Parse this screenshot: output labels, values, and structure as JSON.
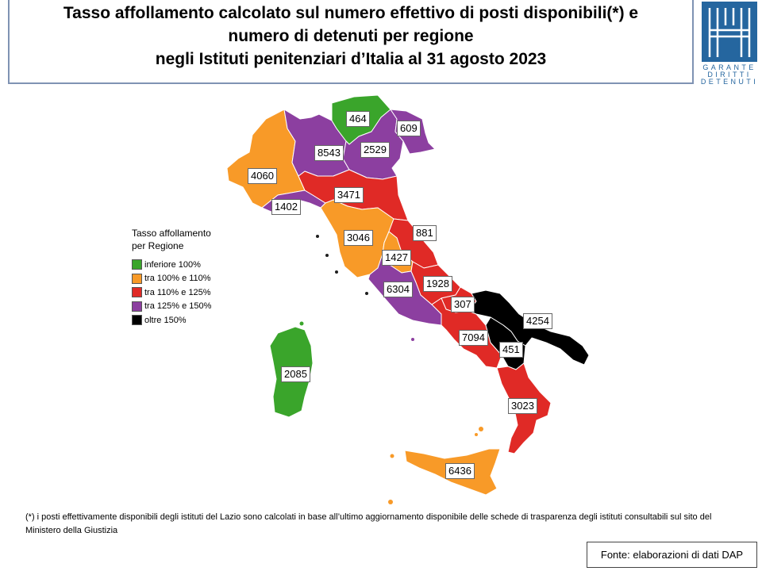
{
  "title": {
    "line1": "Tasso affollamento calcolato sul numero effettivo di posti disponibili(*) e",
    "line2": "numero di detenuti per regione",
    "line3": "negli Istituti penitenziari d’Italia al 31 agosto 2023"
  },
  "logo": {
    "line1": "GARANTE",
    "line2": "DIRITTI",
    "line3": "DETENUTI",
    "color": "#25669f"
  },
  "legend": {
    "title_line1": "Tasso affollamento",
    "title_line2": "per Regione",
    "items": [
      {
        "label": "inferiore 100%",
        "color": "#3aa52b"
      },
      {
        "label": "tra 100% e 110%",
        "color": "#f89a28"
      },
      {
        "label": "tra 110% e 125%",
        "color": "#e02a26"
      },
      {
        "label": "tra 125% e 150%",
        "color": "#8c3fa0"
      },
      {
        "label": "oltre 150%",
        "color": "#000000"
      }
    ]
  },
  "regions": [
    {
      "id": "trentino",
      "value": "464",
      "class": 0
    },
    {
      "id": "friuli",
      "value": "609",
      "class": 3
    },
    {
      "id": "lombardia",
      "value": "8543",
      "class": 3
    },
    {
      "id": "veneto",
      "value": "2529",
      "class": 3
    },
    {
      "id": "piemonte",
      "value": "4060",
      "class": 1
    },
    {
      "id": "liguria",
      "value": "1402",
      "class": 3
    },
    {
      "id": "emilia",
      "value": "3471",
      "class": 2
    },
    {
      "id": "toscana",
      "value": "3046",
      "class": 1
    },
    {
      "id": "marche",
      "value": "881",
      "class": 2
    },
    {
      "id": "umbria",
      "value": "1427",
      "class": 1
    },
    {
      "id": "lazio",
      "value": "6304",
      "class": 3
    },
    {
      "id": "abruzzo",
      "value": "1928",
      "class": 2
    },
    {
      "id": "molise",
      "value": "307",
      "class": 2
    },
    {
      "id": "puglia",
      "value": "4254",
      "class": 4
    },
    {
      "id": "campania",
      "value": "7094",
      "class": 2
    },
    {
      "id": "basilicata",
      "value": "451",
      "class": 4
    },
    {
      "id": "calabria",
      "value": "3023",
      "class": 2
    },
    {
      "id": "sicilia",
      "value": "6436",
      "class": 1
    },
    {
      "id": "sardegna",
      "value": "2085",
      "class": 0
    }
  ],
  "footnote": "(*) i posti effettivamente disponibili  degli istituti del Lazio sono calcolati in base all’ultimo aggiornamento disponibile  delle schede di trasparenza degli istituti consultabili sul sito del Ministero della Giustizia",
  "source": "Fonte: elaborazioni di dati DAP"
}
